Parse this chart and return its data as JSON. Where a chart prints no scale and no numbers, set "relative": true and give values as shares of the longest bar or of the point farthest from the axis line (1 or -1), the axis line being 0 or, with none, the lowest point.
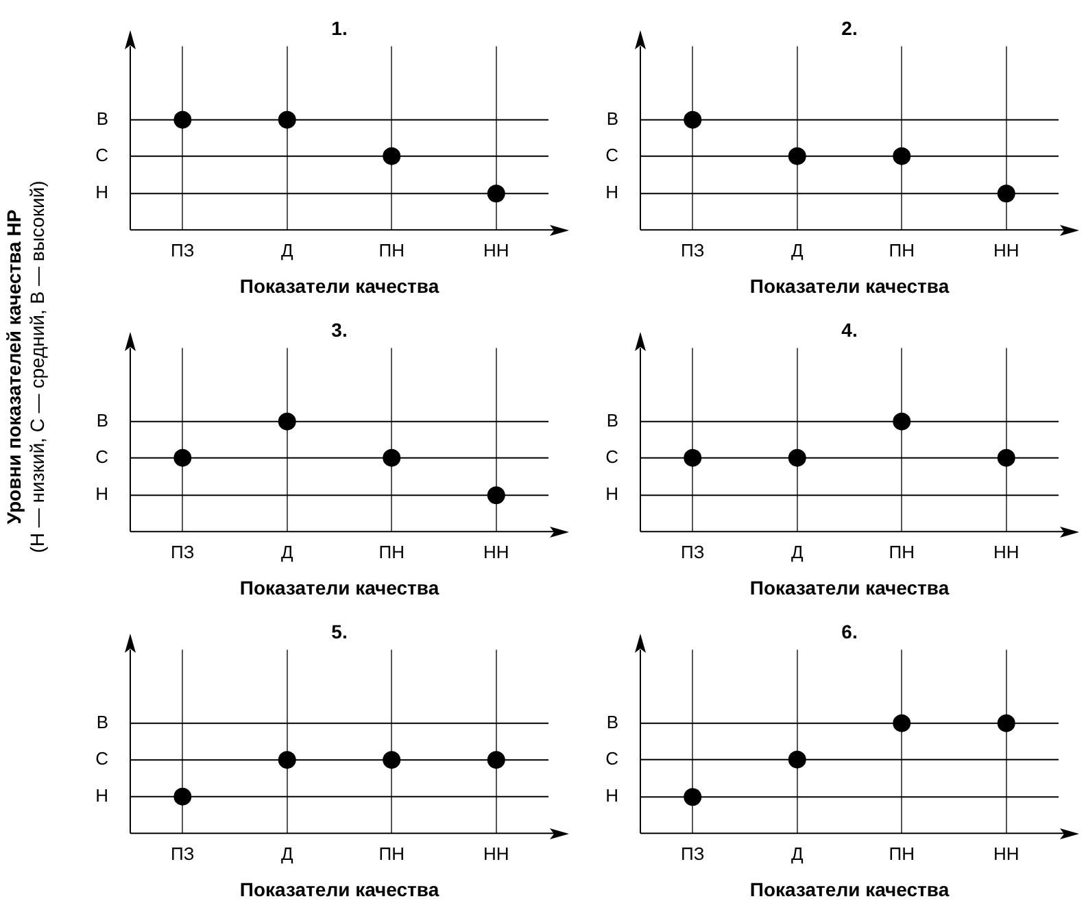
{
  "chart_data": [
    {
      "type": "scatter",
      "title": "1.",
      "xlabel": "Показатели качества",
      "ylabel": "Уровни показателей качества НР\n(Н — низкий, С — средний, В — высокий)",
      "categories": [
        "ПЗ",
        "Д",
        "ПН",
        "НН"
      ],
      "values": [
        1,
        1,
        0.67,
        0.33
      ],
      "relative": true,
      "color": "#000000",
      "marker": "circle",
      "grid": "x",
      "ref_lines": [
        {
          "axis": "y",
          "value": 1,
          "label": "В"
        },
        {
          "axis": "y",
          "value": 0.67,
          "label": "С"
        },
        {
          "axis": "y",
          "value": 0.33,
          "label": "Н"
        }
      ]
    },
    {
      "type": "scatter",
      "title": "2.",
      "xlabel": "Показатели качества",
      "categories": [
        "ПЗ",
        "Д",
        "ПН",
        "НН"
      ],
      "values": [
        1,
        0.67,
        0.67,
        0.33
      ],
      "relative": true,
      "color": "#000000",
      "marker": "circle",
      "grid": "x",
      "ref_lines": [
        {
          "axis": "y",
          "value": 1,
          "label": "В"
        },
        {
          "axis": "y",
          "value": 0.67,
          "label": "С"
        },
        {
          "axis": "y",
          "value": 0.33,
          "label": "Н"
        }
      ]
    },
    {
      "type": "scatter",
      "title": "3.",
      "xlabel": "Показатели качества",
      "categories": [
        "ПЗ",
        "Д",
        "ПН",
        "НН"
      ],
      "values": [
        0.67,
        1,
        0.67,
        0.33
      ],
      "relative": true,
      "color": "#000000",
      "marker": "circle",
      "grid": "x",
      "ref_lines": [
        {
          "axis": "y",
          "value": 1,
          "label": "В"
        },
        {
          "axis": "y",
          "value": 0.67,
          "label": "С"
        },
        {
          "axis": "y",
          "value": 0.33,
          "label": "Н"
        }
      ]
    },
    {
      "type": "scatter",
      "title": "4.",
      "xlabel": "Показатели качества",
      "categories": [
        "ПЗ",
        "Д",
        "ПН",
        "НН"
      ],
      "values": [
        0.67,
        0.67,
        1,
        0.67
      ],
      "relative": true,
      "color": "#000000",
      "marker": "circle",
      "grid": "x",
      "ref_lines": [
        {
          "axis": "y",
          "value": 1,
          "label": "В"
        },
        {
          "axis": "y",
          "value": 0.67,
          "label": "С"
        },
        {
          "axis": "y",
          "value": 0.33,
          "label": "Н"
        }
      ]
    },
    {
      "type": "scatter",
      "title": "5.",
      "xlabel": "Показатели качества",
      "categories": [
        "ПЗ",
        "Д",
        "ПН",
        "НН"
      ],
      "values": [
        0.5,
        1,
        1,
        1
      ],
      "relative": true,
      "color": "#000000",
      "marker": "circle",
      "grid": "x",
      "ref_lines": [
        {
          "axis": "y",
          "value": 1.5,
          "label": "В"
        },
        {
          "axis": "y",
          "value": 1,
          "label": "С"
        },
        {
          "axis": "y",
          "value": 0.5,
          "label": "Н"
        }
      ]
    },
    {
      "type": "scatter",
      "title": "6.",
      "xlabel": "Показатели качества",
      "categories": [
        "ПЗ",
        "Д",
        "ПН",
        "НН"
      ],
      "values": [
        0.33,
        0.67,
        1,
        1
      ],
      "relative": true,
      "color": "#000000",
      "marker": "circle",
      "grid": "x",
      "ref_lines": [
        {
          "axis": "y",
          "value": 1,
          "label": "В"
        },
        {
          "axis": "y",
          "value": 0.67,
          "label": "С"
        },
        {
          "axis": "y",
          "value": 0.33,
          "label": "Н"
        }
      ]
    }
  ]
}
